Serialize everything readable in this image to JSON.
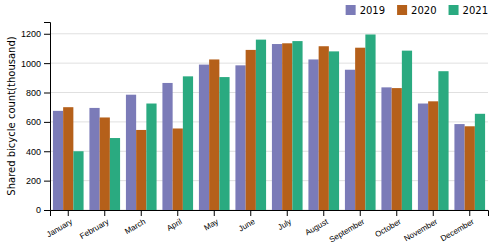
{
  "chart_data": {
    "type": "bar",
    "categories": [
      "January",
      "February",
      "March",
      "April",
      "May",
      "June",
      "July",
      "August",
      "September",
      "October",
      "November",
      "December"
    ],
    "series": [
      {
        "name": "2019",
        "color": "#7b7bb8",
        "values": [
          675,
          695,
          785,
          865,
          990,
          985,
          1130,
          1025,
          955,
          835,
          725,
          585
        ]
      },
      {
        "name": "2020",
        "color": "#b5601a",
        "values": [
          700,
          630,
          545,
          555,
          1025,
          1090,
          1135,
          1115,
          1105,
          830,
          740,
          570
        ]
      },
      {
        "name": "2021",
        "color": "#2aaa80",
        "values": [
          400,
          490,
          725,
          910,
          905,
          1160,
          1150,
          1080,
          1195,
          1085,
          945,
          655
        ]
      }
    ],
    "ylabel": "Shared bicycle count(thousand)",
    "ylim": [
      0,
      1280
    ],
    "yticks": [
      0,
      200,
      400,
      600,
      800,
      1000,
      1200
    ],
    "grid": true,
    "legend": "upper right"
  }
}
